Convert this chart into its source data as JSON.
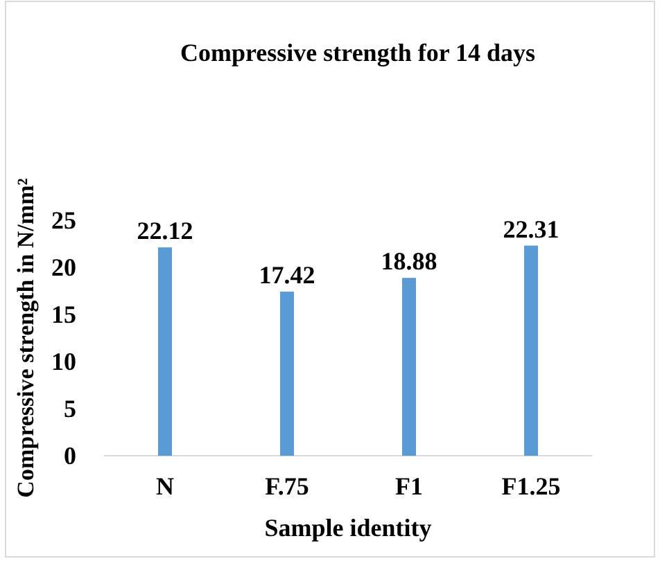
{
  "chart_data": {
    "type": "bar",
    "title": "Compressive strength for 14 days",
    "xlabel": "Sample identity",
    "ylabel": "Compressive strength in N/mm²",
    "categories": [
      "N",
      "F.75",
      "F1",
      "F1.25"
    ],
    "values": [
      22.12,
      17.42,
      18.88,
      22.31
    ],
    "color": "#5b9bd5",
    "ylim": [
      0,
      25
    ],
    "yticks": [
      0,
      5,
      10,
      15,
      20,
      25
    ],
    "grid": false,
    "data_labels": true
  }
}
